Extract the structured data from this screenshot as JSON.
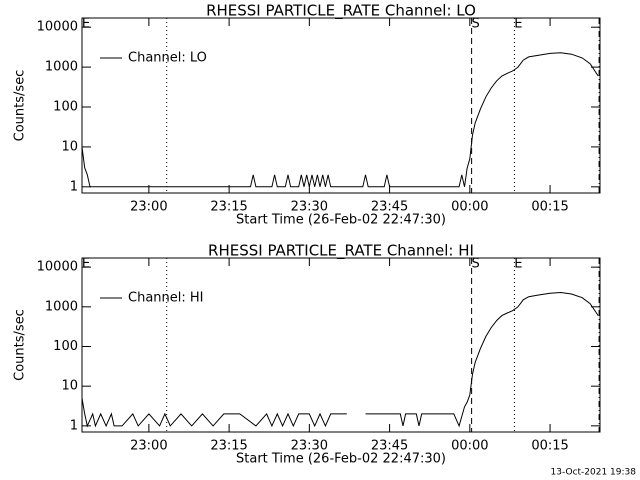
{
  "chart_data": [
    {
      "type": "line",
      "title": "RHESSI PARTICLE_RATE Channel: LO",
      "x_label": "Start Time (26-Feb-02 22:47:30)",
      "y_label": "Counts/sec",
      "log_y": true,
      "legend": "upper left",
      "xlim": [
        "22:47:30",
        "00:24:20"
      ],
      "ylim": [
        0.7,
        17000
      ],
      "xticks": [
        "23:00",
        "23:15",
        "23:30",
        "23:45",
        "00:00",
        "00:15"
      ],
      "yticks": [
        1,
        10,
        100,
        1000,
        10000
      ],
      "vlines": [
        {
          "x": "22:47:30",
          "style": "solid",
          "label": "E"
        },
        {
          "x": "23:03:20",
          "style": "dotted"
        },
        {
          "x": "00:00:20",
          "style": "dashed",
          "label": "S"
        },
        {
          "x": "00:08:20",
          "style": "dotted",
          "label": "E"
        },
        {
          "x": "00:24:10",
          "style": "dashdot"
        }
      ],
      "x": [
        "22:47:30",
        "22:48:00",
        "22:48:30",
        "22:49:00",
        "22:50:00",
        "23:19:00",
        "23:19:30",
        "23:20:00",
        "23:23:00",
        "23:23:30",
        "23:24:00",
        "23:25:30",
        "23:26:00",
        "23:26:30",
        "23:28:00",
        "23:28:30",
        "23:29:00",
        "23:29:30",
        "23:30:00",
        "23:30:30",
        "23:31:00",
        "23:31:30",
        "23:32:00",
        "23:32:30",
        "23:33:00",
        "23:33:30",
        "23:34:00",
        "23:40:00",
        "23:40:30",
        "23:41:00",
        "23:44:00",
        "23:44:30",
        "23:45:00",
        "23:58:00",
        "23:58:30",
        "23:59:00",
        "23:59:30",
        "00:00:00",
        "00:00:30",
        "00:01:00",
        "00:02:00",
        "00:03:00",
        "00:04:00",
        "00:05:00",
        "00:06:00",
        "00:07:00",
        "00:08:00",
        "00:09:00",
        "00:10:00",
        "00:11:00",
        "00:13:00",
        "00:15:00",
        "00:17:00",
        "00:19:00",
        "00:21:00",
        "00:22:30",
        "00:24:00"
      ],
      "series": [
        {
          "name": "Channel: LO",
          "color": "#000000",
          "values": [
            10,
            3,
            2,
            1,
            1,
            1,
            2,
            1,
            1,
            2,
            1,
            1,
            2,
            1,
            1,
            2,
            1,
            2,
            1,
            2,
            1,
            2,
            1,
            2,
            1,
            2,
            1,
            1,
            2,
            1,
            1,
            2,
            1,
            1,
            2,
            1,
            3,
            5,
            20,
            40,
            90,
            180,
            300,
            450,
            600,
            700,
            800,
            1000,
            1500,
            1800,
            2000,
            2200,
            2300,
            2100,
            1700,
            1200,
            600
          ]
        }
      ]
    },
    {
      "type": "line",
      "title": "RHESSI PARTICLE_RATE Channel: HI",
      "x_label": "Start Time (26-Feb-02 22:47:30)",
      "y_label": "Counts/sec",
      "log_y": true,
      "legend": "upper left",
      "xlim": [
        "22:47:30",
        "00:24:20"
      ],
      "ylim": [
        0.7,
        17000
      ],
      "xticks": [
        "23:00",
        "23:15",
        "23:30",
        "23:45",
        "00:00",
        "00:15"
      ],
      "yticks": [
        1,
        10,
        100,
        1000,
        10000
      ],
      "vlines": [
        {
          "x": "22:47:30",
          "style": "solid",
          "label": "E"
        },
        {
          "x": "23:03:20",
          "style": "dotted"
        },
        {
          "x": "00:00:20",
          "style": "dashed",
          "label": "S"
        },
        {
          "x": "00:08:20",
          "style": "dotted",
          "label": "E"
        },
        {
          "x": "00:24:10",
          "style": "dashdot"
        }
      ],
      "x": [
        "22:47:30",
        "22:48:00",
        "22:48:30",
        "22:49:30",
        "22:50:00",
        "22:51:00",
        "22:52:00",
        "22:53:00",
        "22:53:30",
        "22:55:00",
        "22:57:00",
        "22:58:00",
        "23:00:00",
        "23:02:00",
        "23:03:00",
        "23:04:00",
        "23:06:00",
        "23:08:00",
        "23:10:00",
        "23:12:00",
        "23:14:00",
        "23:17:00",
        "23:20:00",
        "23:22:00",
        "23:23:00",
        "23:24:00",
        "23:25:00",
        "23:26:00",
        "23:27:00",
        "23:28:00",
        "23:30:00",
        "23:31:00",
        "23:32:00",
        "23:33:00",
        "23:34:00",
        "23:35:00",
        "23:37:00",
        "23:38:30",
        "23:40:30",
        "23:45:00",
        "23:47:00",
        "23:47:30",
        "23:48:00",
        "23:50:00",
        "23:50:30",
        "23:51:00",
        "23:54:00",
        "23:57:00",
        "23:58:00",
        "23:59:00",
        "23:59:30",
        "00:00:00",
        "00:00:30",
        "00:01:00",
        "00:02:00",
        "00:03:00",
        "00:04:00",
        "00:05:00",
        "00:06:00",
        "00:07:00",
        "00:08:00",
        "00:09:00",
        "00:10:00",
        "00:11:00",
        "00:13:00",
        "00:15:00",
        "00:17:00",
        "00:19:00",
        "00:21:00",
        "00:22:30",
        "00:24:00"
      ],
      "series": [
        {
          "name": "Channel: HI",
          "color": "#000000",
          "values": [
            5,
            2,
            1,
            2,
            1,
            2,
            1,
            2,
            1,
            1,
            2,
            1,
            2,
            1,
            2,
            1,
            2,
            1,
            2,
            1,
            2,
            2,
            1,
            2,
            1,
            2,
            1,
            2,
            1,
            2,
            2,
            1,
            2,
            1,
            2,
            2,
            2,
            null,
            2,
            2,
            2,
            1,
            2,
            2,
            1,
            2,
            2,
            2,
            1,
            3,
            4,
            6,
            20,
            40,
            90,
            180,
            300,
            450,
            600,
            700,
            800,
            1000,
            1500,
            1800,
            2000,
            2200,
            2300,
            2100,
            1700,
            1200,
            600
          ]
        }
      ]
    }
  ],
  "footer": "13-Oct-2021 19:38"
}
